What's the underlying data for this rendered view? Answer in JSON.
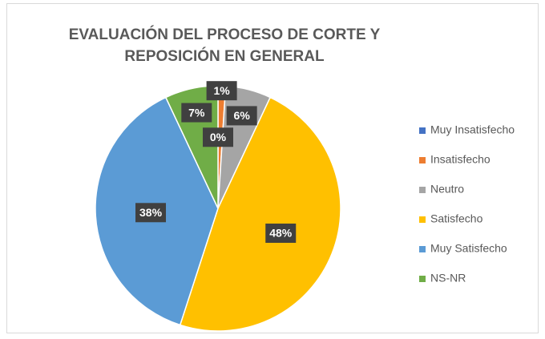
{
  "chart_data": {
    "type": "pie",
    "title": "EVALUACIÓN DEL PROCESO DE CORTE Y REPOSICIÓN EN GENERAL",
    "categories": [
      "Muy Insatisfecho",
      "Insatisfecho",
      "Neutro",
      "Satisfecho",
      "Muy Satisfecho",
      "NS-NR"
    ],
    "values": [
      0,
      1,
      6,
      48,
      38,
      7
    ],
    "value_labels": [
      "0%",
      "1%",
      "6%",
      "48%",
      "38%",
      "7%"
    ],
    "colors": [
      "#4472c4",
      "#ed7d31",
      "#a5a5a5",
      "#ffc000",
      "#5b9bd5",
      "#70ad47"
    ],
    "legend": "right"
  }
}
